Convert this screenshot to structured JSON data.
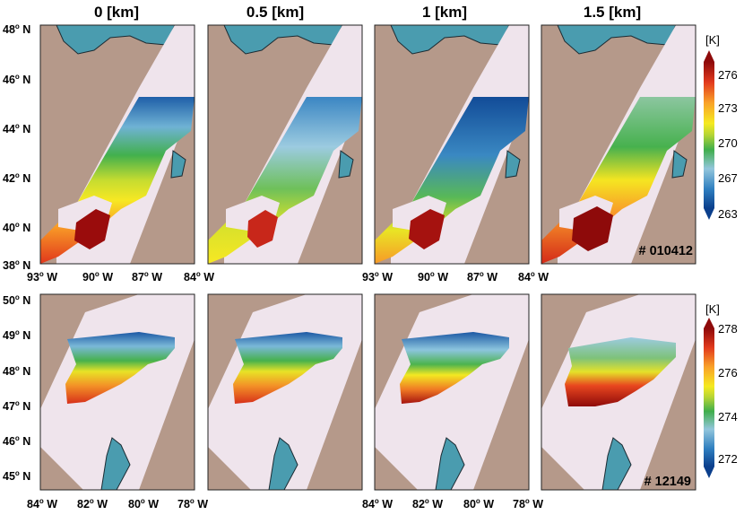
{
  "columns": [
    "0 [km]",
    "0.5 [km]",
    "1 [km]",
    "1.5 [km]"
  ],
  "rows": [
    {
      "case_label": "# 010412",
      "lat_labels": [
        "48",
        "46",
        "44",
        "42",
        "40",
        "38"
      ],
      "lat_suffix": " N",
      "lon_labels": [
        "93",
        "90",
        "87",
        "84"
      ],
      "lon_suffix": " W",
      "lon_axes_shown_under_panels": [
        0,
        2
      ],
      "colorbar": {
        "unit": "[K]",
        "ticks": [
          "276",
          "273",
          "270",
          "267",
          "263"
        ]
      },
      "water_polygon": "Great Lakes (Lake Superior / Lake Michigan)"
    },
    {
      "case_label": "# 12149",
      "lat_labels": [
        "50",
        "49",
        "48",
        "47",
        "46",
        "45"
      ],
      "lat_suffix": " N",
      "lon_labels": [
        "84",
        "82",
        "80",
        "78"
      ],
      "lon_suffix": " W",
      "lon_axes_shown_under_panels": [
        0,
        2
      ],
      "colorbar": {
        "unit": "[K]",
        "ticks": [
          "278",
          "276",
          "274",
          "272"
        ]
      },
      "water_polygon": "Hudson Bay / James Bay"
    }
  ],
  "colors": {
    "land": "#b5998a",
    "water": "#4a9caf",
    "swath": "#efe4ec",
    "colorbar_stops": [
      "#0b3f8c",
      "#2f7fc0",
      "#93c6dc",
      "#3fae4b",
      "#b4d435",
      "#f5ea20",
      "#f9a228",
      "#e23a1d",
      "#8e0a0a"
    ]
  }
}
